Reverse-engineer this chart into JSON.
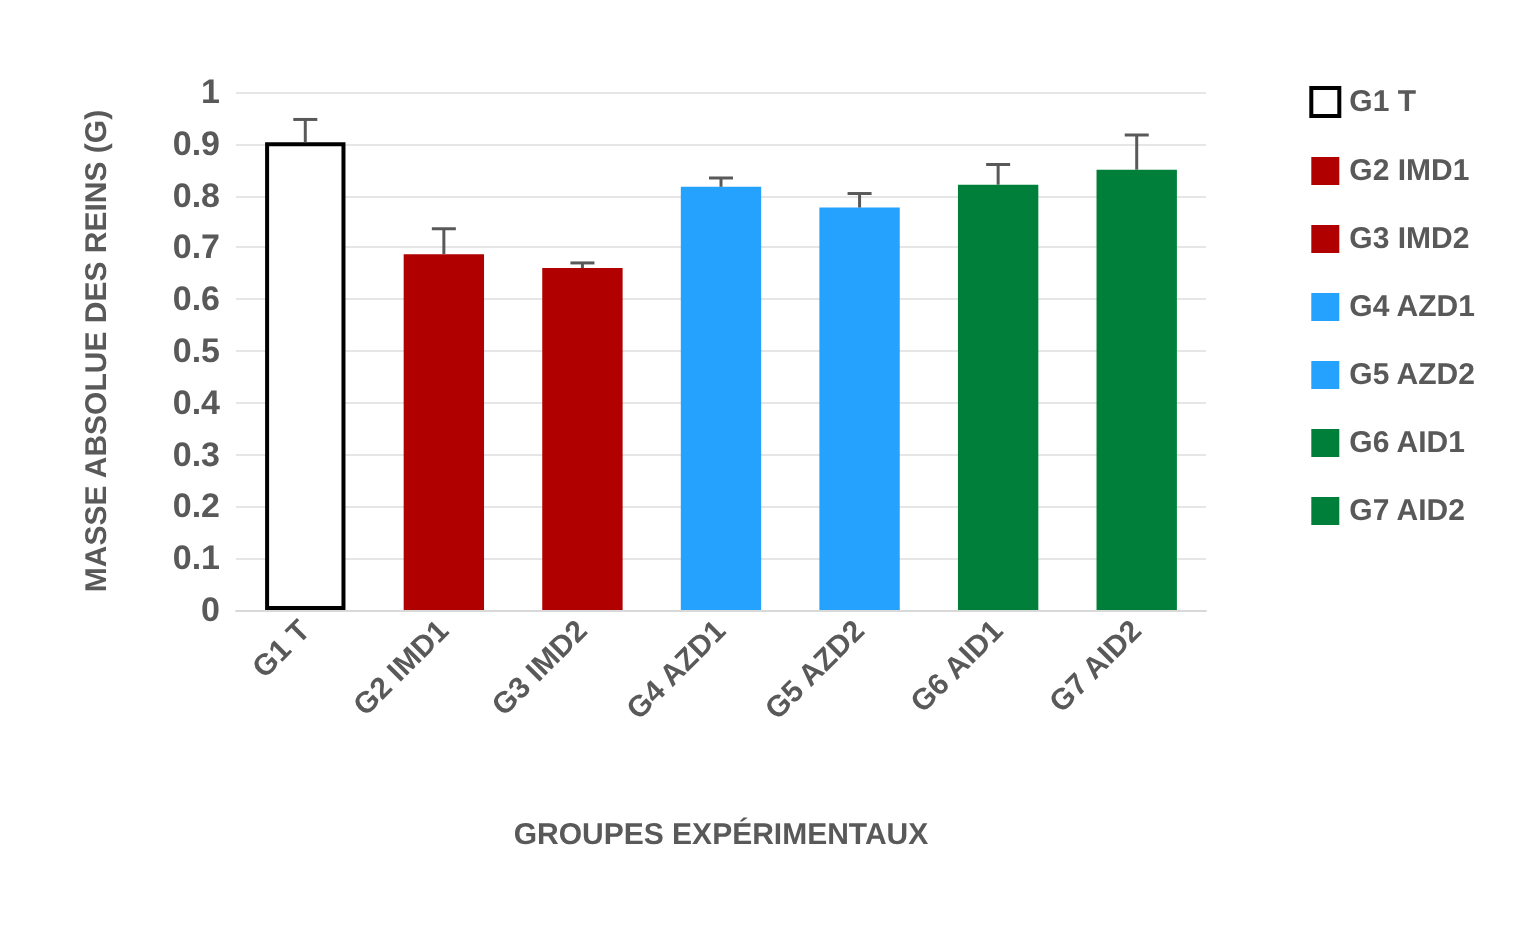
{
  "chart_data": {
    "type": "bar",
    "xlabel": "GROUPES EXPÉRIMENTAUX",
    "ylabel": "MASSE ABSOLUE DES REINS (G)",
    "categories": [
      "G1 T",
      "G2 IMD1",
      "G3 IMD2",
      "G4 AZD1",
      "G5 AZD2",
      "G6 AID1",
      "G7 AID2"
    ],
    "series": [
      {
        "name": "G1 T",
        "color": "#ffffff",
        "values": [
          0.903,
          null,
          null,
          null,
          null,
          null,
          null
        ],
        "errors": [
          [
            0.903,
            0.947
          ],
          null,
          null,
          null,
          null,
          null,
          null
        ]
      },
      {
        "name": "G2 IMD1",
        "color": "#b00000",
        "values": [
          null,
          0.687,
          null,
          null,
          null,
          null,
          null
        ],
        "errors": [
          null,
          [
            0.687,
            0.736
          ],
          null,
          null,
          null,
          null,
          null
        ]
      },
      {
        "name": "G3 IMD2",
        "color": "#b00000",
        "values": [
          null,
          null,
          0.66,
          null,
          null,
          null,
          null
        ],
        "errors": [
          null,
          null,
          [
            0.66,
            0.67
          ],
          null,
          null,
          null,
          null
        ]
      },
      {
        "name": "G4 AZD1",
        "color": "#24a2fd",
        "values": [
          null,
          null,
          null,
          0.817,
          null,
          null,
          null
        ],
        "errors": [
          null,
          null,
          null,
          [
            0.817,
            0.834
          ],
          null,
          null,
          null
        ]
      },
      {
        "name": "G5 AZD2",
        "color": "#24a2fd",
        "values": [
          null,
          null,
          null,
          null,
          0.777,
          null,
          null
        ],
        "errors": [
          null,
          null,
          null,
          null,
          [
            0.777,
            0.804
          ],
          null,
          null
        ]
      },
      {
        "name": "G6 AID1",
        "color": "#007f3a",
        "values": [
          null,
          null,
          null,
          null,
          null,
          0.821,
          null
        ],
        "errors": [
          null,
          null,
          null,
          null,
          null,
          [
            0.821,
            0.86
          ],
          null
        ]
      },
      {
        "name": "G7 AID2",
        "color": "#007f3a",
        "values": [
          null,
          null,
          null,
          null,
          null,
          null,
          0.85
        ],
        "errors": [
          null,
          null,
          null,
          null,
          null,
          null,
          [
            0.85,
            0.917
          ]
        ]
      }
    ],
    "ylim": [
      0,
      1
    ],
    "yticks": [
      0,
      0.1,
      0.2,
      0.3,
      0.4,
      0.5,
      0.6,
      0.7,
      0.8,
      0.9,
      1
    ],
    "grid": "y",
    "legend": "right"
  }
}
